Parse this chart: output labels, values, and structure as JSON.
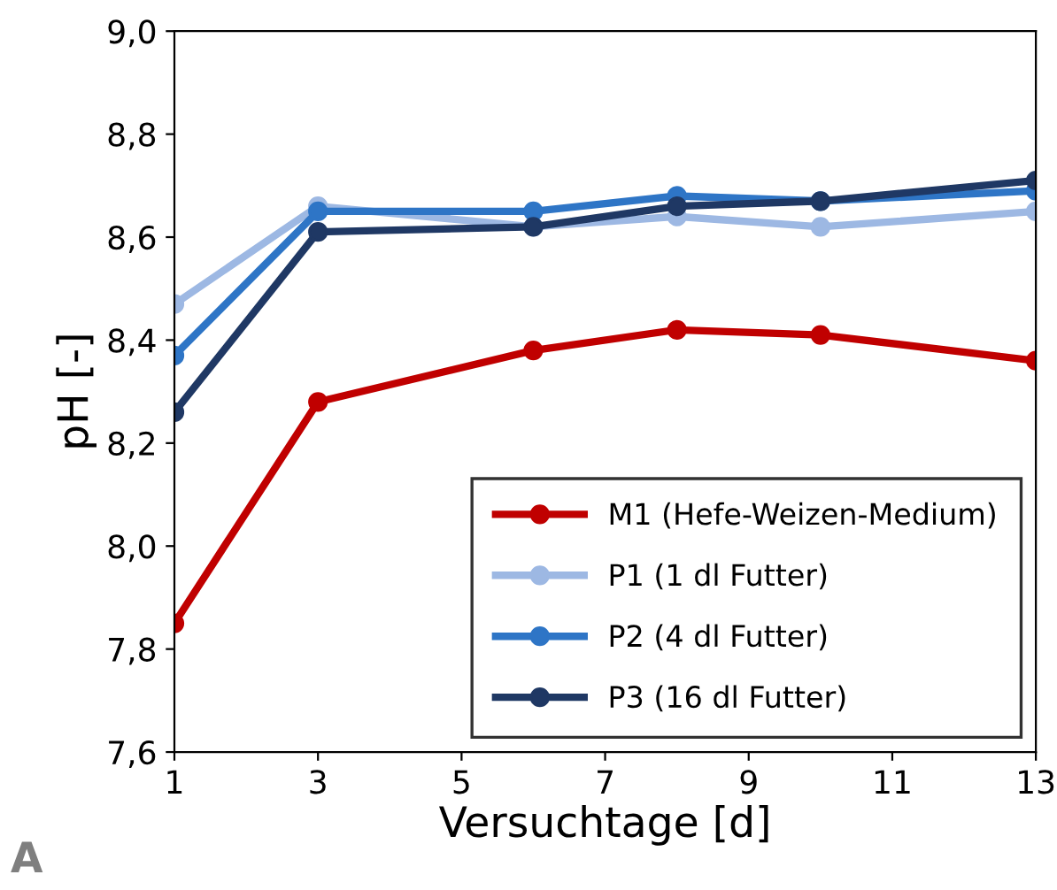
{
  "chart_data": {
    "type": "line",
    "xlabel": "Versuchtage [d]",
    "ylabel": "pH [-]",
    "x": [
      1,
      3,
      6,
      8,
      10,
      13
    ],
    "series": [
      {
        "name": "M1 (Hefe-Weizen-Medium)",
        "color": "#c00000",
        "values": [
          7.85,
          8.28,
          8.38,
          8.42,
          8.41,
          8.36
        ]
      },
      {
        "name": "P1 (1 dl Futter)",
        "color": "#9db8e3",
        "values": [
          8.47,
          8.66,
          8.62,
          8.64,
          8.62,
          8.65
        ]
      },
      {
        "name": "P2 (4 dl Futter)",
        "color": "#2e75c6",
        "values": [
          8.37,
          8.65,
          8.65,
          8.68,
          8.67,
          8.69
        ]
      },
      {
        "name": "P3 (16 dl Futter)",
        "color": "#1f3864",
        "values": [
          8.26,
          8.61,
          8.62,
          8.66,
          8.67,
          8.71
        ]
      }
    ],
    "xlim": [
      1,
      13
    ],
    "xticks": [
      1,
      3,
      5,
      7,
      9,
      11,
      13
    ],
    "ylim": [
      7.6,
      9.0
    ],
    "yticks": [
      {
        "value": 7.6,
        "label": "7,6"
      },
      {
        "value": 7.8,
        "label": "7,8"
      },
      {
        "value": 8.0,
        "label": "8,0"
      },
      {
        "value": 8.2,
        "label": "8,2"
      },
      {
        "value": 8.4,
        "label": "8,4"
      },
      {
        "value": 8.6,
        "label": "8,6"
      },
      {
        "value": 8.8,
        "label": "8,8"
      },
      {
        "value": 9.0,
        "label": "9,0"
      }
    ],
    "annotations": [
      "A"
    ],
    "legend": "bottom right",
    "marker": "circle",
    "line_style": "solid",
    "grid": false
  }
}
